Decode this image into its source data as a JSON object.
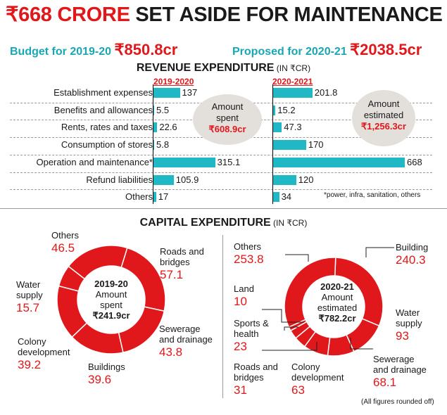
{
  "headline": {
    "amount": "₹668 CRORE",
    "rest": " SET ASIDE FOR MAINTENANCE"
  },
  "budget": {
    "left_label": "Budget for 2019-20 ",
    "left_value": "₹850.8cr",
    "right_label": "Proposed for 2020-21 ",
    "right_value": "₹2038.5cr"
  },
  "revenue": {
    "title": "REVENUE EXPENDITURE",
    "unit": " (IN ₹CR)",
    "year_left": "2019-2020",
    "year_right": "2020-2021",
    "bubble_left": {
      "line1": "Amount",
      "line2": "spent",
      "value": "₹608.9cr"
    },
    "bubble_right": {
      "line1": "Amount",
      "line2": "estimated",
      "value": "₹1,256.3cr"
    },
    "footnote": "*power, infra, sanitation, others"
  },
  "capital": {
    "title": "CAPITAL EXPENDITURE",
    "unit": " (IN ₹CR)",
    "left_center": {
      "year": "2019-20",
      "line1": "Amount",
      "line2": "spent",
      "total": "₹241.9cr"
    },
    "right_center": {
      "year": "2020-21",
      "line1": "Amount",
      "line2": "estimated",
      "total": "₹782.2cr"
    },
    "footnote": "(All figures rounded off)"
  },
  "colors": {
    "accent": "#e0171b",
    "bar": "#1fb8c4",
    "teal_text": "#1aa6b4",
    "bubble": "#e3e0dc"
  },
  "chart_data": [
    {
      "type": "bar",
      "orientation": "horizontal",
      "title": "REVENUE EXPENDITURE (IN ₹CR)",
      "categories": [
        "Establishment expenses",
        "Benefits and allowances",
        "Rents, rates and taxes",
        "Consumption of stores",
        "Operation and maintenance*",
        "Refund liabilities",
        "Others"
      ],
      "series": [
        {
          "name": "2019-2020",
          "values": [
            137,
            5.5,
            22.6,
            5.8,
            315.1,
            105.9,
            17
          ],
          "labels": [
            "137",
            "5.5",
            "22.6",
            "5.8",
            "315.1",
            "105.9",
            "17"
          ]
        },
        {
          "name": "2020-2021",
          "values": [
            201.8,
            15.2,
            47.3,
            170,
            668,
            120,
            34
          ],
          "labels": [
            "201.8",
            "15.2",
            "47.3",
            "170",
            "668",
            "120",
            "34"
          ]
        }
      ]
    },
    {
      "type": "pie",
      "style": "donut",
      "title": "2019-20",
      "slices": [
        {
          "label": "Roads and bridges",
          "value": 57.1
        },
        {
          "label": "Sewerage and drainage",
          "value": 43.8
        },
        {
          "label": "Buildings",
          "value": 39.6
        },
        {
          "label": "Colony development",
          "value": 39.2
        },
        {
          "label": "Water supply",
          "value": 15.7
        },
        {
          "label": "Others",
          "value": 46.5
        }
      ]
    },
    {
      "type": "pie",
      "style": "donut",
      "title": "2020-21",
      "slices": [
        {
          "label": "Building",
          "value": 240.3
        },
        {
          "label": "Water supply",
          "value": 93
        },
        {
          "label": "Sewerage and drainage",
          "value": 68.1
        },
        {
          "label": "Colony development",
          "value": 63
        },
        {
          "label": "Roads and bridges",
          "value": 31
        },
        {
          "label": "Sports & health",
          "value": 23
        },
        {
          "label": "Land",
          "value": 10
        },
        {
          "label": "Others",
          "value": 253.8
        }
      ]
    }
  ]
}
